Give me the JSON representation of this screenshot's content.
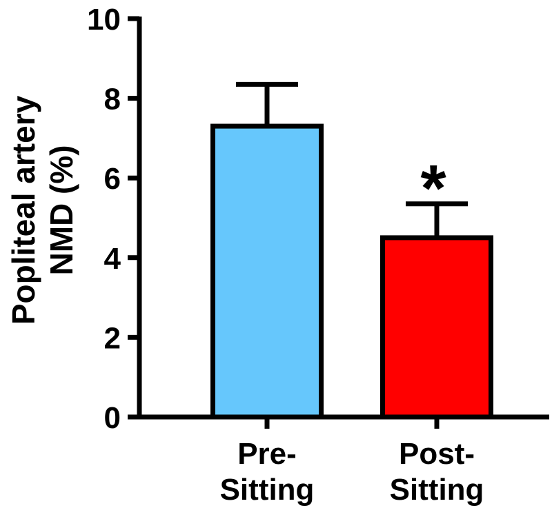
{
  "chart_data": {
    "type": "bar",
    "categories": [
      [
        "Pre-",
        "Sitting"
      ],
      [
        "Post-",
        "Sitting"
      ]
    ],
    "values": [
      7.3,
      4.5
    ],
    "error": [
      1.05,
      0.85
    ],
    "colors": [
      "#66c7fc",
      "#ff0000"
    ],
    "annotations": [
      "",
      "*"
    ],
    "ylabel_lines": [
      "Popliteal artery",
      "NMD (%)"
    ],
    "ylim": [
      0,
      10
    ],
    "yticks": [
      0,
      2,
      4,
      6,
      8,
      10
    ],
    "grid": false,
    "legend": false
  }
}
